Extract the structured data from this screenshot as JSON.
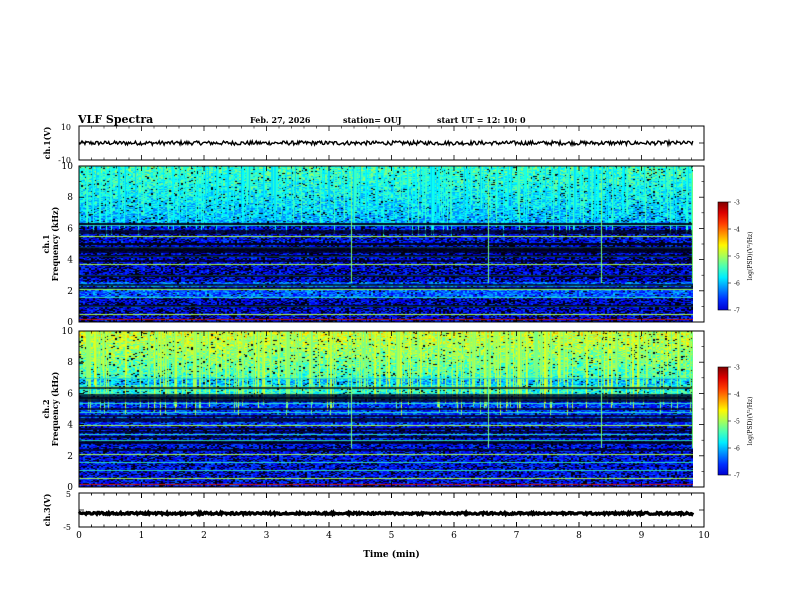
{
  "header": {
    "title": "VLF Spectra",
    "date": "Feb. 27, 2026",
    "station": "station= OUJ",
    "start": "start  UT =   12: 10: 0"
  },
  "chart_data": [
    {
      "type": "line",
      "name": "ch1-waveform",
      "ylabel": "ch.1(V)",
      "ylim": [
        -10,
        10
      ],
      "yticks": [
        "10",
        "-10"
      ],
      "level": 0,
      "noise_amplitude": 1.2
    },
    {
      "type": "heatmap",
      "name": "ch1-spectrogram",
      "ylabel": "ch.1\nFrequency (kHz)",
      "ylabel_lines": [
        "ch.1",
        "Frequency (kHz)"
      ],
      "ylim": [
        0,
        10
      ],
      "yticks": [
        "0",
        "2",
        "4",
        "6",
        "8",
        "10"
      ],
      "colorbar": {
        "label": "log(PSD)(V²/Hz)",
        "range": [
          -7,
          -3
        ],
        "ticks": [
          "-3",
          "-4",
          "-5",
          "-6",
          "-7"
        ]
      },
      "persistent_lines_khz": [
        0.5,
        1.0,
        1.6,
        2.1,
        2.4,
        3.0,
        3.7,
        4.2,
        4.8,
        5.5,
        6.2
      ],
      "notable_events_min": [
        4.35,
        6.55,
        8.35,
        9.8
      ]
    },
    {
      "type": "heatmap",
      "name": "ch2-spectrogram",
      "ylabel": "ch.2\nFrequency (kHz)",
      "ylabel_lines": [
        "ch.2",
        "Frequency (kHz)"
      ],
      "ylim": [
        0,
        10
      ],
      "yticks": [
        "0",
        "2",
        "4",
        "6",
        "8",
        "10"
      ],
      "colorbar": {
        "label": "log(PSD)(V²/Hz)",
        "range": [
          -7,
          -3
        ],
        "ticks": [
          "-3",
          "-4",
          "-5",
          "-6",
          "-7"
        ]
      },
      "persistent_lines_khz": [
        0.6,
        1.1,
        1.6,
        2.1,
        3.0,
        3.4,
        4.0,
        4.8,
        5.4,
        6.4,
        7.0
      ],
      "notable_events_min": [
        4.35,
        6.55,
        8.35,
        9.8
      ]
    },
    {
      "type": "line",
      "name": "ch3-waveform",
      "ylabel": "ch.3(V)",
      "ylim": [
        -5,
        5
      ],
      "yticks": [
        "5",
        "-5"
      ],
      "level": -1.0,
      "noise_amplitude": 0.3
    }
  ],
  "xaxis": {
    "label": "Time (min)",
    "xlim": [
      0,
      10
    ],
    "ticks": [
      "0",
      "1",
      "2",
      "3",
      "4",
      "5",
      "6",
      "7",
      "8",
      "9",
      "10"
    ],
    "data_end_min": 9.82
  }
}
